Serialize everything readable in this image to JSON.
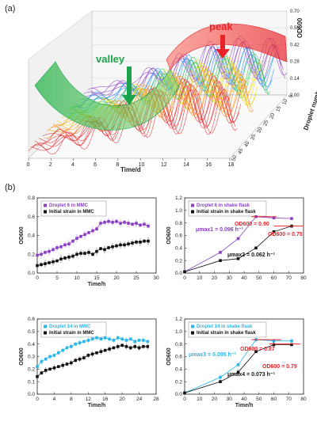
{
  "panel_a": {
    "label": "(a)"
  },
  "panel_b": {
    "label": "(b)"
  },
  "colors": {
    "purple": "#8a3fc4",
    "black": "#111111",
    "cyan": "#29b6e8",
    "red": "#e8242a",
    "green": "#1aa54b",
    "orange": "#ff8800"
  },
  "chart_data": [
    {
      "type": "line",
      "panel": "(a)",
      "title": "",
      "xlabel": "Time/d",
      "ylabel": "OD600",
      "zlabel": "Droplet number",
      "x_ticks": [
        "0",
        "2",
        "4",
        "6",
        "8",
        "10",
        "12",
        "14",
        "16",
        "18"
      ],
      "y_ticks": [
        "0.00",
        "0.14",
        "0.28",
        "0.42",
        "0.56",
        "0.70"
      ],
      "z_ticks": [
        "5",
        "10",
        "15",
        "20",
        "25",
        "30",
        "35",
        "40",
        "45",
        "50"
      ],
      "xlim": [
        0,
        18
      ],
      "ylim": [
        0,
        0.7
      ],
      "annotations": [
        "valley",
        "peak"
      ]
    },
    {
      "type": "line",
      "panel": "b-top-left",
      "xlabel": "Time/h",
      "ylabel": "OD600",
      "xlim": [
        0,
        30
      ],
      "ylim": [
        0,
        0.8
      ],
      "x_ticks": [
        "0",
        "5",
        "10",
        "15",
        "20",
        "25",
        "30"
      ],
      "y_ticks": [
        "0.0",
        "0.2",
        "0.4",
        "0.6",
        "0.8"
      ],
      "series": [
        {
          "name": "Droplet 6 in MMC",
          "color": "#8a3fc4",
          "x": [
            0,
            1,
            2,
            3,
            4,
            5,
            6,
            7,
            8,
            9,
            10,
            11,
            12,
            13,
            14,
            15,
            16,
            17,
            18,
            19,
            20,
            21,
            22,
            23,
            24,
            25,
            26,
            27,
            28
          ],
          "values": [
            0.19,
            0.2,
            0.22,
            0.23,
            0.25,
            0.27,
            0.28,
            0.3,
            0.31,
            0.34,
            0.37,
            0.39,
            0.41,
            0.43,
            0.45,
            0.47,
            0.53,
            0.54,
            0.55,
            0.54,
            0.55,
            0.53,
            0.54,
            0.53,
            0.52,
            0.53,
            0.51,
            0.52,
            0.5
          ]
        },
        {
          "name": "Initial strain in MMC",
          "color": "#111111",
          "x": [
            0,
            1,
            2,
            3,
            4,
            5,
            6,
            7,
            8,
            9,
            10,
            11,
            12,
            13,
            14,
            15,
            16,
            17,
            18,
            19,
            20,
            21,
            22,
            23,
            24,
            25,
            26,
            27,
            28
          ],
          "values": [
            0.08,
            0.09,
            0.1,
            0.11,
            0.12,
            0.13,
            0.15,
            0.16,
            0.17,
            0.18,
            0.2,
            0.21,
            0.21,
            0.22,
            0.2,
            0.23,
            0.26,
            0.25,
            0.27,
            0.28,
            0.29,
            0.3,
            0.3,
            0.31,
            0.32,
            0.33,
            0.33,
            0.34,
            0.34
          ]
        }
      ]
    },
    {
      "type": "line",
      "panel": "b-top-right",
      "xlabel": "",
      "ylabel": "OD600",
      "xlim": [
        0,
        80
      ],
      "ylim": [
        0,
        1.2
      ],
      "x_ticks": [
        "0",
        "10",
        "20",
        "30",
        "40",
        "50",
        "60",
        "70",
        "80"
      ],
      "y_ticks": [
        "0.0",
        "0.2",
        "0.4",
        "0.6",
        "0.8",
        "1.0",
        "1.2"
      ],
      "series": [
        {
          "name": "Droplet 6 in shake flask",
          "color": "#8a3fc4",
          "x": [
            0,
            24,
            36,
            48,
            60,
            72
          ],
          "values": [
            0.02,
            0.33,
            0.55,
            0.9,
            0.88,
            0.87
          ]
        },
        {
          "name": "Initial strain in shake flask",
          "color": "#111111",
          "x": [
            0,
            24,
            36,
            48,
            60,
            72
          ],
          "values": [
            0.02,
            0.2,
            0.23,
            0.4,
            0.66,
            0.75
          ]
        }
      ],
      "annotations": [
        {
          "text": "μmax1 = 0.096 h⁻¹",
          "color": "#8a3fc4"
        },
        {
          "text": "μmax2 = 0.062 h⁻¹",
          "color": "#111111"
        },
        {
          "text": "OD600 = 0.90",
          "color": "#e8242a"
        },
        {
          "text": "OD600 = 0.75",
          "color": "#e8242a"
        }
      ]
    },
    {
      "type": "line",
      "panel": "b-bottom-left",
      "xlabel": "Time/h",
      "ylabel": "OD600",
      "xlim": [
        0,
        28
      ],
      "ylim": [
        0,
        0.6
      ],
      "x_ticks": [
        "0",
        "4",
        "8",
        "12",
        "16",
        "20",
        "24",
        "28"
      ],
      "y_ticks": [
        "0.0",
        "0.1",
        "0.2",
        "0.3",
        "0.4",
        "0.5",
        "0.6"
      ],
      "series": [
        {
          "name": "Droplet 14 in MMC",
          "color": "#29b6e8",
          "x": [
            0,
            1,
            2,
            3,
            4,
            5,
            6,
            7,
            8,
            9,
            10,
            11,
            12,
            13,
            14,
            15,
            16,
            17,
            18,
            19,
            20,
            21,
            22,
            23,
            24,
            25,
            26
          ],
          "values": [
            0.22,
            0.26,
            0.28,
            0.3,
            0.31,
            0.33,
            0.35,
            0.37,
            0.38,
            0.4,
            0.41,
            0.42,
            0.43,
            0.44,
            0.45,
            0.44,
            0.45,
            0.44,
            0.43,
            0.45,
            0.44,
            0.43,
            0.44,
            0.42,
            0.43,
            0.43,
            0.42
          ]
        },
        {
          "name": "Initial strain in MMC",
          "color": "#111111",
          "x": [
            0,
            1,
            2,
            3,
            4,
            5,
            6,
            7,
            8,
            9,
            10,
            11,
            12,
            13,
            14,
            15,
            16,
            17,
            18,
            19,
            20,
            21,
            22,
            23,
            24,
            25,
            26
          ],
          "values": [
            0.14,
            0.17,
            0.19,
            0.2,
            0.21,
            0.22,
            0.23,
            0.24,
            0.25,
            0.27,
            0.28,
            0.29,
            0.31,
            0.32,
            0.33,
            0.34,
            0.35,
            0.36,
            0.37,
            0.38,
            0.39,
            0.38,
            0.37,
            0.38,
            0.37,
            0.38,
            0.38
          ]
        }
      ]
    },
    {
      "type": "line",
      "panel": "b-bottom-right",
      "xlabel": "Time/h",
      "ylabel": "OD600",
      "xlim": [
        0,
        80
      ],
      "ylim": [
        0,
        1.2
      ],
      "x_ticks": [
        "0",
        "10",
        "20",
        "30",
        "40",
        "50",
        "60",
        "70",
        "80"
      ],
      "y_ticks": [
        "0.0",
        "0.2",
        "0.4",
        "0.6",
        "0.8",
        "1.0",
        "1.2"
      ],
      "series": [
        {
          "name": "Droplet 14 in shake flask",
          "color": "#29b6e8",
          "x": [
            0,
            24,
            36,
            48,
            60,
            72
          ],
          "values": [
            0.02,
            0.27,
            0.47,
            0.87,
            0.85,
            0.85
          ]
        },
        {
          "name": "Initial strain in shake flask",
          "color": "#111111",
          "x": [
            0,
            24,
            36,
            48,
            60,
            72
          ],
          "values": [
            0.02,
            0.2,
            0.35,
            0.68,
            0.79,
            0.79
          ]
        }
      ],
      "annotations": [
        {
          "text": "μmax3 = 0.095 h⁻¹",
          "color": "#29b6e8"
        },
        {
          "text": "μmax4 = 0.073 h⁻¹",
          "color": "#111111"
        },
        {
          "text": "OD600 = 0.87",
          "color": "#e8242a"
        },
        {
          "text": "OD600 = 0.79",
          "color": "#e8242a"
        }
      ]
    }
  ]
}
